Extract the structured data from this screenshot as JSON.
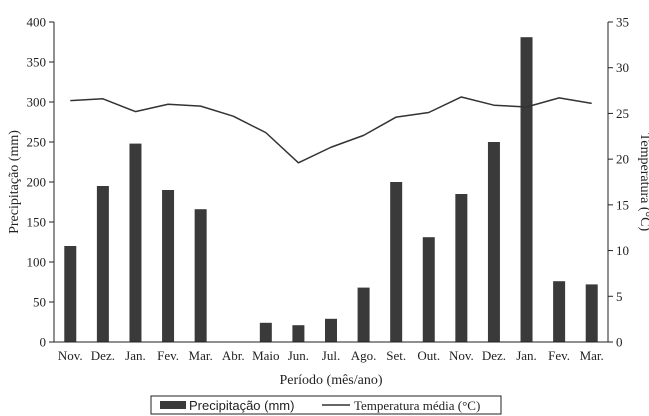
{
  "chart_data": {
    "type": "bar",
    "categories": [
      "Nov.",
      "Dez.",
      "Jan.",
      "Fev.",
      "Mar.",
      "Abr.",
      "Maio",
      "Jun.",
      "Jul.",
      "Ago.",
      "Set.",
      "Out.",
      "Nov.",
      "Dez.",
      "Jan.",
      "Fev.",
      "Mar."
    ],
    "series": [
      {
        "name": "Precipitação (mm)",
        "type": "bar",
        "axis": "left",
        "color": "#3a3a3a",
        "values": [
          120,
          195,
          248,
          190,
          166,
          0,
          24,
          21,
          29,
          68,
          200,
          131,
          185,
          250,
          381,
          76,
          72
        ]
      },
      {
        "name": "Temperatura média (°C)",
        "type": "line",
        "axis": "right",
        "color": "#333333",
        "values": [
          26.4,
          26.6,
          25.2,
          26.0,
          25.8,
          24.7,
          22.9,
          19.6,
          21.3,
          22.6,
          24.6,
          25.1,
          26.8,
          25.9,
          25.7,
          26.7,
          26.1
        ]
      }
    ],
    "xlabel": "Período (mês/ano)",
    "ylabel_left": "Precipitação (mm)",
    "ylabel_right": "Temperatura (°C)",
    "ylim_left": [
      0,
      400
    ],
    "ylim_right": [
      0,
      35
    ],
    "yticks_left": [
      "0",
      "50",
      "100",
      "150",
      "200",
      "250",
      "300",
      "350",
      "400"
    ],
    "yticks_right": [
      "0",
      "5",
      "10",
      "15",
      "20",
      "25",
      "30",
      "35"
    ],
    "grid": false,
    "legend_position": "bottom-center",
    "legend": {
      "bar_label": "Precipitação (mm)",
      "line_label": "Temperatura média (°C)"
    }
  }
}
